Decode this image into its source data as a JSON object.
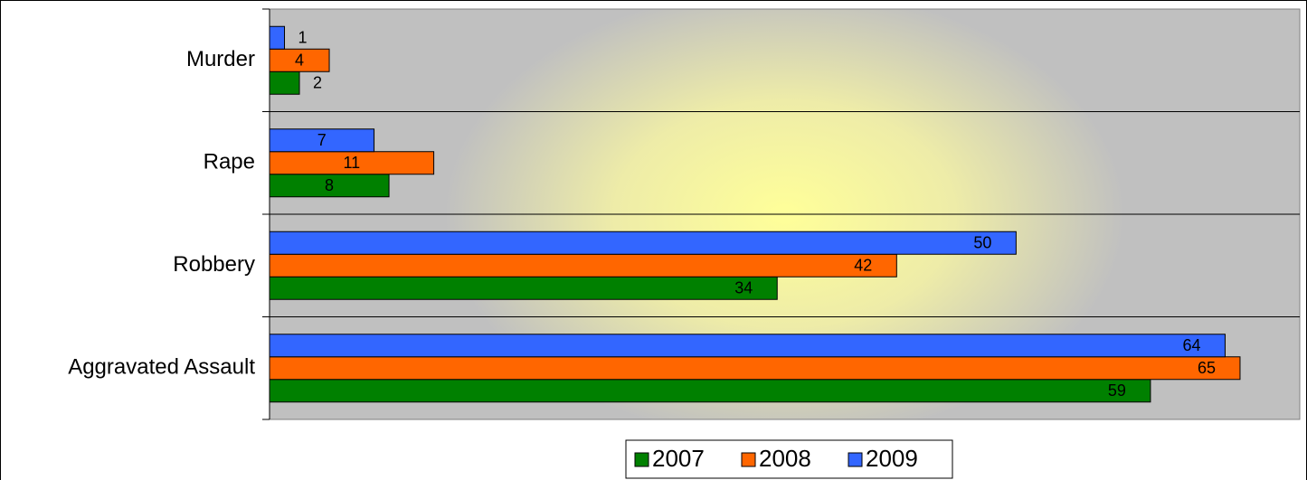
{
  "chart_data": {
    "type": "barh",
    "categories": [
      "Murder",
      "Rape",
      "Robbery",
      "Aggravated Assault"
    ],
    "series": [
      {
        "name": "2007",
        "color": "#008000",
        "values": [
          2,
          8,
          34,
          59
        ]
      },
      {
        "name": "2008",
        "color": "#ff6600",
        "values": [
          4,
          11,
          42,
          65
        ]
      },
      {
        "name": "2009",
        "color": "#3366ff",
        "values": [
          1,
          7,
          50,
          64
        ]
      }
    ],
    "xlim": [
      0,
      69
    ],
    "grid": true,
    "legend": "bottom"
  }
}
